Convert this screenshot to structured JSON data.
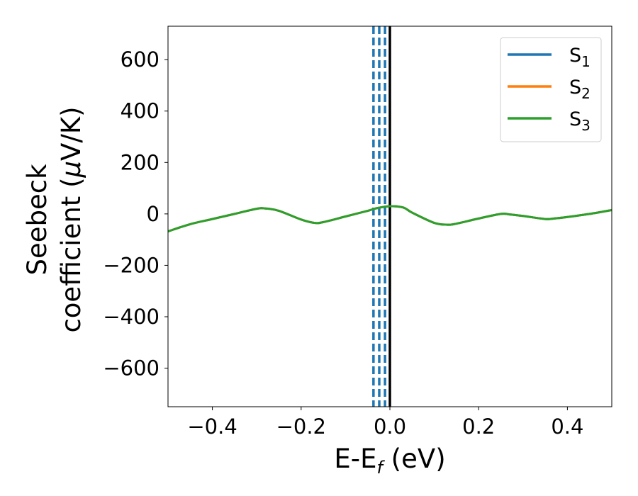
{
  "chart_data": {
    "type": "line",
    "xlabel": {
      "base": "E-E",
      "sub": "f",
      "suffix": " (eV)"
    },
    "ylabel": {
      "line1": "Seebeck",
      "line2_prefix": "coefficient  (",
      "mu": "μ",
      "line2_suffix": "V/K)"
    },
    "xlim": [
      -0.5,
      0.5
    ],
    "ylim": [
      -750,
      730
    ],
    "xticks": [
      -0.4,
      -0.2,
      0.0,
      0.2,
      0.4
    ],
    "xtick_labels": [
      "−0.4",
      "−0.2",
      "0.0",
      "0.2",
      "0.4"
    ],
    "yticks": [
      600,
      400,
      200,
      0,
      -200,
      -400,
      -600
    ],
    "ytick_labels": [
      "600",
      "400",
      "200",
      "0",
      "−200",
      "−400",
      "−600"
    ],
    "grid": false,
    "legend_position": "top-right",
    "series": [
      {
        "name": "S",
        "sub": "1",
        "color": "#1f77b4",
        "x": [
          -0.5,
          -0.45,
          -0.4,
          -0.35,
          -0.3,
          -0.28,
          -0.25,
          -0.2,
          -0.17,
          -0.15,
          -0.1,
          -0.05,
          -0.03,
          0.0,
          0.03,
          0.05,
          0.1,
          0.13,
          0.15,
          0.2,
          0.25,
          0.27,
          0.3,
          0.35,
          0.37,
          0.4,
          0.45,
          0.5
        ],
        "y": [
          -68,
          -40,
          -20,
          0,
          20,
          21,
          12,
          -22,
          -35,
          -32,
          -10,
          12,
          22,
          30,
          25,
          5,
          -35,
          -42,
          -38,
          -18,
          0,
          -2,
          -8,
          -20,
          -18,
          -12,
          0,
          15
        ]
      },
      {
        "name": "S",
        "sub": "2",
        "color": "#ff7f0e",
        "x": [
          -0.5,
          -0.45,
          -0.4,
          -0.35,
          -0.3,
          -0.28,
          -0.25,
          -0.2,
          -0.17,
          -0.15,
          -0.1,
          -0.05,
          -0.03,
          0.0,
          0.03,
          0.05,
          0.1,
          0.13,
          0.15,
          0.2,
          0.25,
          0.27,
          0.3,
          0.35,
          0.37,
          0.4,
          0.45,
          0.5
        ],
        "y": [
          -68,
          -40,
          -20,
          0,
          20,
          21,
          12,
          -22,
          -35,
          -32,
          -10,
          12,
          22,
          30,
          25,
          5,
          -35,
          -42,
          -38,
          -18,
          0,
          -2,
          -8,
          -20,
          -18,
          -12,
          0,
          15
        ]
      },
      {
        "name": "S",
        "sub": "3",
        "color": "#2ca02c",
        "x": [
          -0.5,
          -0.45,
          -0.4,
          -0.35,
          -0.3,
          -0.28,
          -0.25,
          -0.2,
          -0.17,
          -0.15,
          -0.1,
          -0.05,
          -0.03,
          0.0,
          0.03,
          0.05,
          0.1,
          0.13,
          0.15,
          0.2,
          0.25,
          0.27,
          0.3,
          0.35,
          0.37,
          0.4,
          0.45,
          0.5
        ],
        "y": [
          -68,
          -40,
          -20,
          0,
          20,
          21,
          12,
          -22,
          -35,
          -32,
          -10,
          12,
          22,
          30,
          25,
          5,
          -35,
          -42,
          -38,
          -18,
          0,
          -2,
          -8,
          -20,
          -18,
          -12,
          0,
          15
        ]
      }
    ],
    "vlines_dashed": {
      "x": [
        -0.037,
        -0.024,
        -0.011
      ],
      "color": "#1f77b4"
    },
    "vline_solid": {
      "x": 0.0,
      "color": "#000000"
    }
  }
}
